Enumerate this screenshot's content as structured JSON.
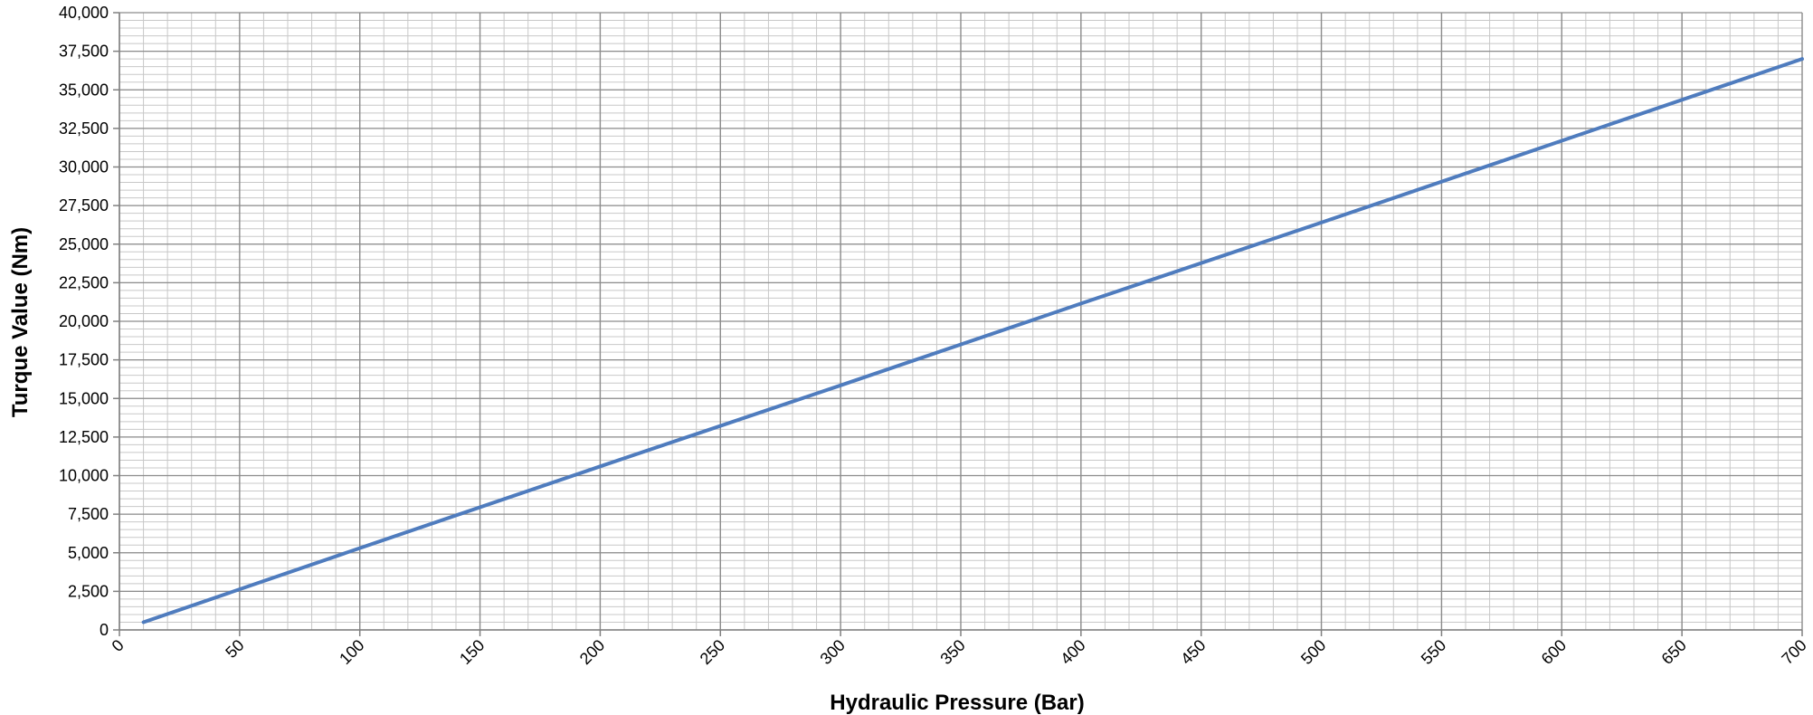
{
  "chart_data": {
    "type": "line",
    "title": "",
    "xlabel": "Hydraulic Pressure (Bar)",
    "ylabel": "Turque Value (Nm)",
    "xlim": [
      0,
      700
    ],
    "ylim": [
      0,
      40000
    ],
    "x_ticks": [
      0,
      50,
      100,
      150,
      200,
      250,
      300,
      350,
      400,
      450,
      500,
      550,
      600,
      650,
      700
    ],
    "x_tick_labels": [
      "0",
      "50",
      "100",
      "150",
      "200",
      "250",
      "300",
      "350",
      "400",
      "450",
      "500",
      "550",
      "600",
      "650",
      "700"
    ],
    "y_ticks": [
      0,
      2500,
      5000,
      7500,
      10000,
      12500,
      15000,
      17500,
      20000,
      22500,
      25000,
      27500,
      30000,
      32500,
      35000,
      37500,
      40000
    ],
    "y_tick_labels": [
      "0",
      "2,500",
      "5,000",
      "7,500",
      "10,000",
      "12,500",
      "15,000",
      "17,500",
      "20,000",
      "22,500",
      "25,000",
      "27,500",
      "30,000",
      "32,500",
      "35,000",
      "37,500",
      "40,000"
    ],
    "x_minor_step": 10,
    "y_minor_step": 500,
    "grid": true,
    "legend": "none",
    "series": [
      {
        "x": [
          10,
          100,
          200,
          300,
          400,
          500,
          600,
          700
        ],
        "y": [
          500,
          5300,
          10600,
          15850,
          21150,
          26400,
          31700,
          37000
        ],
        "color": "#4F7CBE"
      }
    ],
    "colors": {
      "minor_grid": "#C8C8C8",
      "major_grid": "#8C8C8C",
      "axis": "#808080"
    }
  }
}
